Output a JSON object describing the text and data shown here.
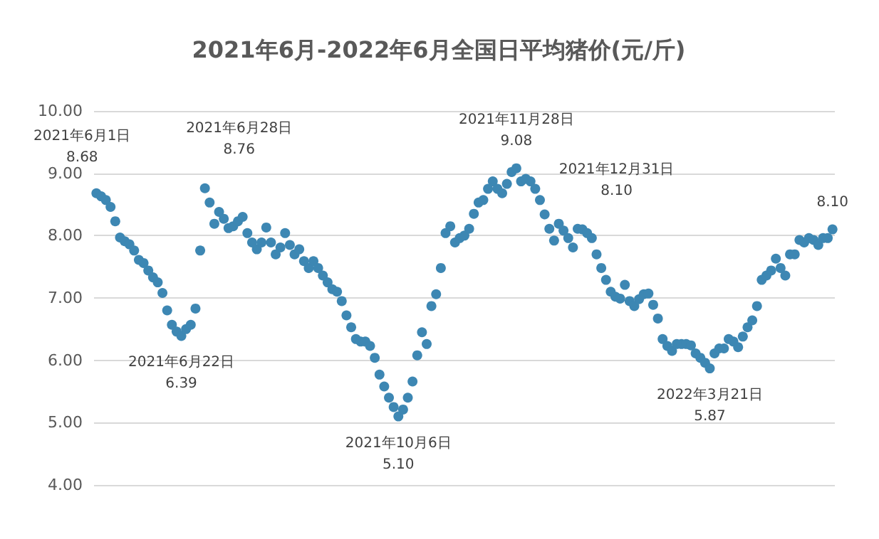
{
  "chart_data": {
    "type": "scatter",
    "title": "2021年6月-2022年6月全国日平均猪价(元/斤)",
    "categories": [
      null,
      null,
      null,
      null,
      null,
      null,
      null,
      null,
      null,
      null,
      null,
      null,
      null,
      null,
      null,
      null,
      null,
      null,
      null,
      null,
      null,
      null,
      null,
      null,
      null,
      null,
      null,
      null,
      null,
      null,
      null,
      null,
      null,
      null,
      null,
      null,
      null,
      null,
      null,
      null,
      null,
      null,
      null,
      null,
      null,
      null,
      null,
      null,
      null,
      null,
      null,
      null,
      null,
      null,
      null,
      null,
      null,
      null,
      null,
      null,
      null,
      null,
      null,
      null,
      null,
      null,
      null,
      null,
      null,
      null,
      null,
      null,
      null,
      null,
      null,
      null,
      null,
      null,
      null,
      null,
      null,
      null,
      null,
      null,
      null,
      null,
      null,
      null,
      null,
      null,
      null,
      null,
      null,
      null,
      null,
      null,
      null,
      null,
      null,
      null,
      null,
      null,
      null,
      null,
      null,
      null,
      null,
      null,
      null,
      null,
      null,
      null,
      null,
      null,
      null,
      null,
      null,
      null,
      null,
      null,
      null,
      null,
      null,
      null,
      null,
      null,
      null,
      null,
      null,
      null,
      null,
      null,
      null,
      null,
      null,
      null,
      null,
      null,
      null,
      null,
      null,
      null,
      null,
      null,
      null,
      null,
      null,
      null,
      null,
      null,
      null,
      null,
      null,
      null,
      null,
      null,
      null
    ],
    "series": [
      {
        "color": "#3d87b3",
        "values": [
          8.68,
          8.63,
          8.57,
          8.46,
          8.23,
          7.97,
          7.91,
          7.86,
          7.76,
          7.61,
          7.56,
          7.44,
          7.33,
          7.25,
          7.08,
          6.8,
          6.57,
          6.46,
          6.39,
          6.5,
          6.57,
          6.83,
          7.76,
          8.76,
          8.53,
          8.19,
          8.38,
          8.27,
          8.12,
          8.15,
          8.23,
          8.3,
          8.04,
          7.89,
          7.78,
          7.89,
          8.13,
          7.89,
          7.7,
          7.81,
          8.04,
          7.85,
          7.7,
          7.78,
          7.59,
          7.48,
          7.59,
          7.48,
          7.36,
          7.25,
          7.14,
          7.1,
          6.95,
          6.72,
          6.53,
          6.34,
          6.3,
          6.3,
          6.23,
          6.04,
          5.77,
          5.58,
          5.4,
          5.25,
          5.1,
          5.21,
          5.4,
          5.66,
          6.08,
          6.45,
          6.26,
          6.87,
          7.06,
          7.48,
          8.04,
          8.15,
          7.89,
          7.96,
          8.0,
          8.11,
          8.35,
          8.53,
          8.57,
          8.75,
          8.87,
          8.75,
          8.68,
          8.83,
          9.02,
          9.08,
          8.87,
          8.91,
          8.87,
          8.75,
          8.57,
          8.34,
          8.11,
          7.92,
          8.19,
          8.08,
          7.96,
          7.81,
          8.11,
          8.1,
          8.04,
          7.96,
          7.7,
          7.48,
          7.29,
          7.1,
          7.02,
          6.99,
          7.21,
          6.95,
          6.87,
          6.98,
          7.06,
          7.07,
          6.89,
          6.67,
          6.34,
          6.23,
          6.15,
          6.26,
          6.26,
          6.26,
          6.24,
          6.11,
          6.04,
          5.96,
          5.87,
          6.11,
          6.19,
          6.19,
          6.34,
          6.3,
          6.21,
          6.38,
          6.53,
          6.64,
          6.87,
          7.29,
          7.36,
          7.44,
          7.63,
          7.48,
          7.36,
          7.7,
          7.7,
          7.93,
          7.89,
          7.96,
          7.93,
          7.85,
          7.96,
          7.96,
          8.1
        ],
        "value_labels": [
          "2021年6月1日\n8.68",
          null,
          null,
          null,
          null,
          null,
          null,
          null,
          null,
          null,
          null,
          null,
          null,
          null,
          null,
          null,
          null,
          null,
          "2021年6月22日\n6.39",
          null,
          null,
          null,
          null,
          "2021年6月28日\n8.76",
          null,
          null,
          null,
          null,
          null,
          null,
          null,
          null,
          null,
          null,
          null,
          null,
          null,
          null,
          null,
          null,
          null,
          null,
          null,
          null,
          null,
          null,
          null,
          null,
          null,
          null,
          null,
          null,
          null,
          null,
          null,
          null,
          null,
          null,
          null,
          null,
          null,
          null,
          null,
          null,
          "2021年10月6日\n5.10",
          null,
          null,
          null,
          null,
          null,
          null,
          null,
          null,
          null,
          null,
          null,
          null,
          null,
          null,
          null,
          null,
          null,
          null,
          null,
          null,
          null,
          null,
          null,
          null,
          "2021年11月28日\n9.08",
          null,
          null,
          null,
          null,
          null,
          null,
          null,
          null,
          null,
          null,
          null,
          null,
          null,
          "2021年12月31日\n8.10",
          null,
          null,
          null,
          null,
          null,
          null,
          null,
          null,
          null,
          null,
          null,
          null,
          null,
          null,
          null,
          null,
          null,
          null,
          null,
          null,
          null,
          null,
          null,
          null,
          null,
          null,
          "2022年3月21日\n5.87",
          null,
          null,
          null,
          null,
          null,
          null,
          null,
          null,
          null,
          null,
          null,
          null,
          null,
          null,
          null,
          null,
          null,
          null,
          null,
          null,
          null,
          null,
          null,
          null,
          null,
          "8.10"
        ]
      }
    ],
    "ylim": [
      4,
      10
    ],
    "yticks": [
      {
        "value": 4,
        "label": "4.00"
      },
      {
        "value": 5,
        "label": "5.00"
      },
      {
        "value": 6,
        "label": "6.00"
      },
      {
        "value": 7,
        "label": "7.00"
      },
      {
        "value": 8,
        "label": "8.00"
      },
      {
        "value": 9,
        "label": "9.00"
      },
      {
        "value": 10,
        "label": "10.00"
      }
    ],
    "tick_labels": "y",
    "grid": "y",
    "marker": "circle"
  }
}
